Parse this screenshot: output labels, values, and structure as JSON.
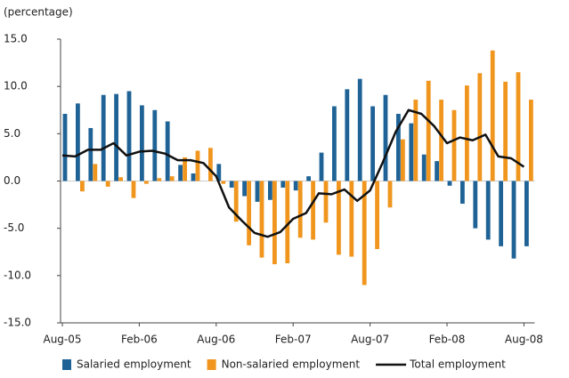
{
  "chart_data": {
    "type": "bar_line",
    "y_label": "(percentage)",
    "categories": [
      "Aug-05",
      null,
      null,
      null,
      null,
      null,
      "Feb-06",
      null,
      null,
      null,
      null,
      null,
      "Aug-06",
      null,
      null,
      null,
      null,
      null,
      "Feb-07",
      null,
      null,
      null,
      null,
      null,
      "Aug-07",
      null,
      null,
      null,
      null,
      null,
      "Feb-08",
      null,
      null,
      null,
      null,
      null,
      "Aug-08"
    ],
    "series": [
      {
        "name": "Salaried employment",
        "kind": "bar",
        "color": "#1f6396",
        "values": [
          7.1,
          8.2,
          5.6,
          9.1,
          9.2,
          9.5,
          8.0,
          7.5,
          6.3,
          1.7,
          0.8,
          0.0,
          1.8,
          -0.7,
          -1.6,
          -2.2,
          -2.0,
          -0.7,
          -1.0,
          0.5,
          3.0,
          7.9,
          9.7,
          10.8,
          7.9,
          9.1,
          7.1,
          6.1,
          2.8,
          2.1,
          -0.5,
          -2.4,
          -5.0,
          -6.2,
          -6.9,
          -8.2,
          -6.9
        ]
      },
      {
        "name": "Non-salaried employment",
        "kind": "bar",
        "color": "#f0961e",
        "values": [
          0.0,
          -1.1,
          1.8,
          -0.6,
          0.4,
          -1.8,
          -0.3,
          0.3,
          0.5,
          2.5,
          3.2,
          3.5,
          -0.3,
          -4.3,
          -6.8,
          -8.1,
          -8.8,
          -8.7,
          -6.0,
          -6.2,
          -4.4,
          -7.8,
          -8.0,
          -11.0,
          -7.2,
          -2.8,
          4.4,
          8.6,
          10.6,
          8.6,
          7.5,
          10.1,
          11.4,
          13.8,
          10.5,
          11.5,
          8.6
        ]
      },
      {
        "name": "Total employment",
        "kind": "line",
        "color": "#111111",
        "values": [
          2.7,
          2.6,
          3.3,
          3.3,
          4.0,
          2.7,
          3.1,
          3.2,
          2.9,
          2.2,
          2.2,
          1.9,
          0.5,
          -2.8,
          -4.2,
          -5.5,
          -5.9,
          -5.4,
          -4.0,
          -3.4,
          -1.3,
          -1.4,
          -0.9,
          -2.1,
          -1.0,
          2.0,
          5.2,
          7.5,
          7.1,
          5.8,
          4.0,
          4.6,
          4.3,
          4.9,
          2.6,
          2.4,
          1.5
        ]
      }
    ],
    "ylim": [
      -15,
      15
    ],
    "yticks": [
      {
        "value": -15,
        "label": "-15.0"
      },
      {
        "value": -10,
        "label": "-10.0"
      },
      {
        "value": -5,
        "label": "-5.0"
      },
      {
        "value": 0,
        "label": "0.0"
      },
      {
        "value": 5,
        "label": "5.0"
      },
      {
        "value": 10,
        "label": "10.0"
      },
      {
        "value": 15,
        "label": "15.0"
      }
    ],
    "legend": "bottom"
  }
}
